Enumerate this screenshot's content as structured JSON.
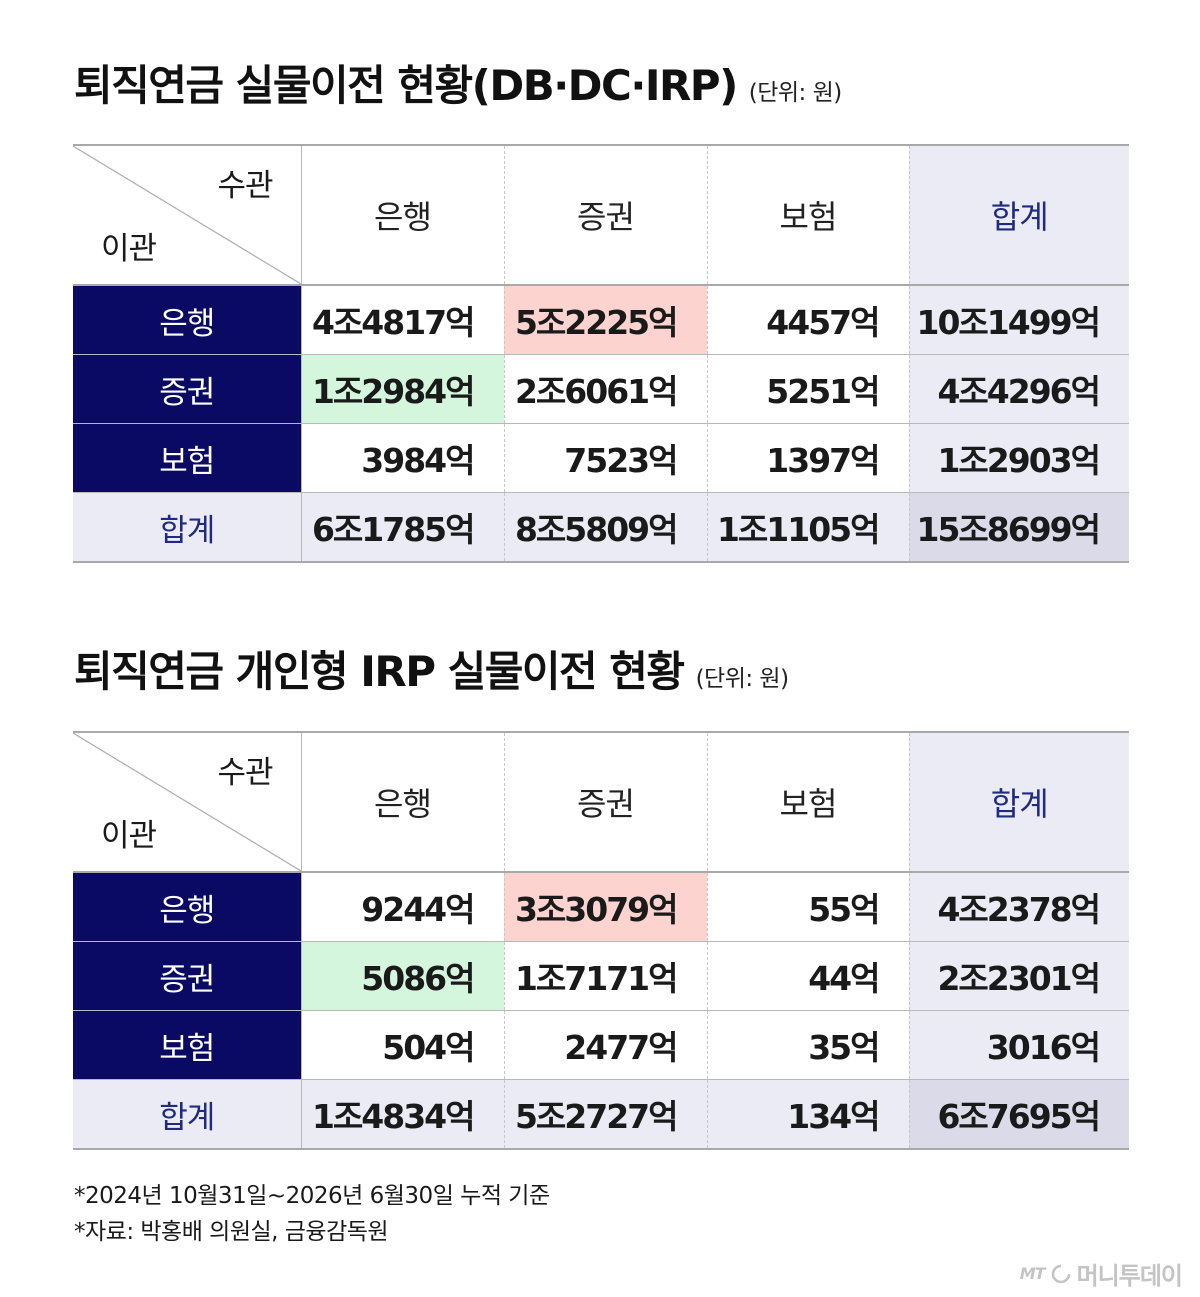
{
  "tables": [
    {
      "title": "퇴직연금 실물이전 현황(DB·DC·IRP)",
      "unit": "(단위: 원)",
      "corner_receiver": "수관",
      "corner_sender": "이관",
      "col_headers": [
        "은행",
        "증권",
        "보험",
        "합계"
      ],
      "rows": [
        {
          "label": "은행",
          "cells": [
            "4조4817억",
            "5조2225억",
            "4457억",
            "10조1499억"
          ]
        },
        {
          "label": "증권",
          "cells": [
            "1조2984억",
            "2조6061억",
            "5251억",
            "4조4296억"
          ]
        },
        {
          "label": "보험",
          "cells": [
            "3984억",
            "7523억",
            "1397억",
            "1조2903억"
          ]
        }
      ],
      "total": {
        "label": "합계",
        "cells": [
          "6조1785억",
          "8조5809억",
          "1조1105억",
          "15조8699억"
        ]
      }
    },
    {
      "title": "퇴직연금 개인형 IRP 실물이전 현황",
      "unit": "(단위: 원)",
      "corner_receiver": "수관",
      "corner_sender": "이관",
      "col_headers": [
        "은행",
        "증권",
        "보험",
        "합계"
      ],
      "rows": [
        {
          "label": "은행",
          "cells": [
            "9244억",
            "3조3079억",
            "55억",
            "4조2378억"
          ]
        },
        {
          "label": "증권",
          "cells": [
            "5086억",
            "1조7171억",
            "44억",
            "2조2301억"
          ]
        },
        {
          "label": "보험",
          "cells": [
            "504억",
            "2477억",
            "35억",
            "3016억"
          ]
        }
      ],
      "total": {
        "label": "합계",
        "cells": [
          "1조4834억",
          "5조2727억",
          "134억",
          "6조7695억"
        ]
      }
    }
  ],
  "footnotes": [
    "*2024년 10월31일~2026년 6월30일 누적 기준",
    "*자료: 박홍배 의원실, 금융감독원"
  ],
  "logo": {
    "mark": "MT",
    "text": "머니투데이"
  },
  "colors": {
    "row_header_bg": "#0a0a64",
    "total_bg": "#ebebf5",
    "grand_total_bg": "#dadae9",
    "highlight_red": "#fcd3ce",
    "highlight_green": "#d4f6dc",
    "total_text": "#1f2a80"
  }
}
